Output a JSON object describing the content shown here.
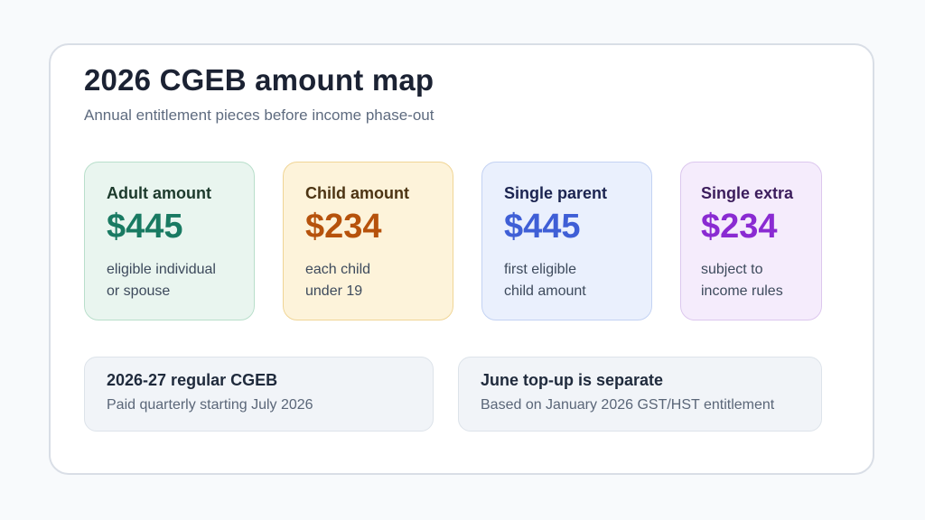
{
  "header": {
    "title": "2026 CGEB amount map",
    "subtitle": "Annual entitlement pieces before income phase-out"
  },
  "cards": [
    {
      "title": "Adult amount",
      "amount": "$445",
      "desc_line1": "eligible individual",
      "desc_line2": "or spouse",
      "accent": "#197a62"
    },
    {
      "title": "Child amount",
      "amount": "$234",
      "desc_line1": "each child",
      "desc_line2": "under 19",
      "accent": "#b6520c"
    },
    {
      "title": "Single parent",
      "amount": "$445",
      "desc_line1": "first eligible",
      "desc_line2": "child amount",
      "accent": "#3f5fd6"
    },
    {
      "title": "Single extra",
      "amount": "$234",
      "desc_line1": "subject to",
      "desc_line2": "income rules",
      "accent": "#8a2bd2"
    }
  ],
  "notes": [
    {
      "title": "2026-27 regular CGEB",
      "body": "Paid quarterly starting July 2026"
    },
    {
      "title": "June top-up is separate",
      "body": "Based on January 2026 GST/HST entitlement"
    }
  ]
}
